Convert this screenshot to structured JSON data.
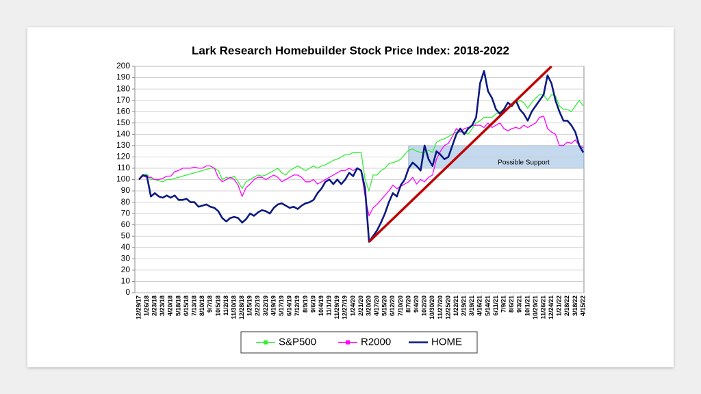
{
  "chart_data": {
    "type": "line",
    "title": "Lark Research Homebuilder Stock Price Index: 2018-2022",
    "categories": [
      "12/29/17",
      null,
      "1/26/18",
      null,
      "2/23/18",
      null,
      "3/23/18",
      null,
      "4/20/18",
      null,
      "5/18/18",
      null,
      "6/15/18",
      null,
      "7/13/18",
      null,
      "8/10/18",
      null,
      "9/7/18",
      null,
      "10/5/18",
      null,
      "11/2/18",
      null,
      "11/30/18",
      null,
      "12/28/18",
      null,
      "1/25/19",
      null,
      "2/22/19",
      null,
      "3/22/19",
      null,
      "4/19/19",
      null,
      "5/17/19",
      null,
      "6/14/19",
      null,
      "7/12/19",
      null,
      "8/9/19",
      null,
      "9/6/19",
      null,
      "10/4/19",
      null,
      "11/1/19",
      null,
      "11/29/19",
      null,
      "12/27/19",
      null,
      "1/24/20",
      null,
      "2/21/20",
      null,
      "3/20/20",
      null,
      "4/17/20",
      null,
      "5/15/20",
      null,
      "6/12/20",
      null,
      "7/10/20",
      null,
      "8/7/20",
      null,
      "9/4/20",
      null,
      "10/2/20",
      null,
      "10/30/20",
      null,
      "11/27/20",
      null,
      "12/25/20",
      null,
      "1/22/21",
      null,
      "2/19/21",
      null,
      "3/19/21",
      null,
      "4/16/21",
      null,
      "5/14/21",
      null,
      "6/11/21",
      null,
      "7/9/21",
      null,
      "8/6/21",
      null,
      "9/3/21",
      null,
      "10/1/21",
      null,
      "10/29/21",
      null,
      "11/26/21",
      null,
      "12/24/21",
      null,
      "1/21/22",
      null,
      "2/18/22",
      null,
      "3/18/22",
      null,
      "4/15/22"
    ],
    "series": [
      {
        "name": "S&P500",
        "color": "#33ee33",
        "width": 1.3,
        "values": [
          100,
          103,
          105,
          100,
          100,
          99,
          98,
          100,
          100,
          101,
          102,
          103,
          104,
          105,
          106,
          107,
          108,
          109,
          110,
          110,
          108,
          100,
          102,
          101,
          103,
          98,
          92,
          98,
          100,
          102,
          104,
          103,
          104,
          106,
          108,
          110,
          106,
          104,
          108,
          110,
          112,
          110,
          108,
          110,
          112,
          110,
          112,
          113,
          115,
          117,
          118,
          120,
          122,
          122,
          124,
          124,
          124,
          100,
          90,
          104,
          104,
          108,
          110,
          114,
          115,
          116,
          118,
          122,
          126,
          127,
          125,
          124,
          124,
          126,
          124,
          133,
          135,
          136,
          138,
          140,
          142,
          142,
          142,
          140,
          145,
          150,
          152,
          155,
          155,
          155,
          158,
          160,
          162,
          163,
          165,
          168,
          170,
          168,
          163,
          168,
          172,
          175,
          175,
          170,
          175,
          174,
          165,
          162,
          162,
          160,
          165,
          170,
          165
        ]
      },
      {
        "name": "R2000",
        "color": "#ff00ff",
        "width": 1.3,
        "values": [
          100,
          103,
          102,
          102,
          100,
          100,
          101,
          103,
          103,
          107,
          108,
          110,
          110,
          110,
          111,
          110,
          110,
          112,
          112,
          110,
          102,
          98,
          100,
          102,
          100,
          95,
          85,
          93,
          96,
          100,
          102,
          102,
          100,
          102,
          104,
          102,
          98,
          100,
          102,
          104,
          104,
          102,
          98,
          98,
          100,
          96,
          98,
          100,
          102,
          104,
          106,
          108,
          108,
          110,
          108,
          110,
          108,
          85,
          68,
          75,
          78,
          82,
          86,
          90,
          95,
          92,
          94,
          96,
          98,
          102,
          96,
          100,
          98,
          102,
          104,
          118,
          125,
          130,
          132,
          138,
          145,
          142,
          145,
          146,
          148,
          148,
          148,
          146,
          150,
          146,
          148,
          150,
          145,
          143,
          145,
          146,
          145,
          148,
          146,
          148,
          150,
          155,
          156,
          145,
          142,
          140,
          130,
          130,
          133,
          132,
          135,
          130,
          128
        ]
      },
      {
        "name": "HOME",
        "color": "#0a1a80",
        "width": 2.6,
        "values": [
          100,
          104,
          103,
          85,
          88,
          85,
          84,
          86,
          84,
          86,
          82,
          82,
          83,
          80,
          80,
          76,
          77,
          78,
          76,
          75,
          72,
          66,
          63,
          66,
          67,
          66,
          62,
          65,
          70,
          68,
          71,
          73,
          72,
          70,
          75,
          78,
          79,
          77,
          75,
          76,
          74,
          77,
          79,
          80,
          82,
          88,
          92,
          98,
          100,
          96,
          100,
          96,
          100,
          106,
          103,
          110,
          108,
          92,
          45,
          50,
          55,
          62,
          70,
          80,
          88,
          85,
          95,
          100,
          110,
          115,
          112,
          108,
          130,
          118,
          112,
          125,
          122,
          118,
          120,
          130,
          140,
          145,
          140,
          145,
          148,
          155,
          185,
          196,
          178,
          172,
          162,
          158,
          162,
          168,
          165,
          170,
          162,
          158,
          152,
          160,
          165,
          170,
          175,
          192,
          185,
          170,
          160,
          152,
          152,
          148,
          142,
          130,
          124
        ]
      }
    ],
    "trendline": {
      "x": [
        "3/20/20",
        "12/24/21"
      ],
      "values": [
        45,
        200
      ],
      "color": "#c00000"
    },
    "support_band": {
      "label": "Possible Support",
      "from": "8/7/20",
      "range": [
        110,
        130
      ],
      "color": "#c5d9ee"
    },
    "ylim": [
      0,
      200
    ],
    "yticks": [
      0,
      10,
      20,
      30,
      40,
      50,
      60,
      70,
      80,
      90,
      100,
      110,
      120,
      130,
      140,
      150,
      160,
      170,
      180,
      190,
      200
    ],
    "grid": true,
    "legend": "bottom"
  }
}
